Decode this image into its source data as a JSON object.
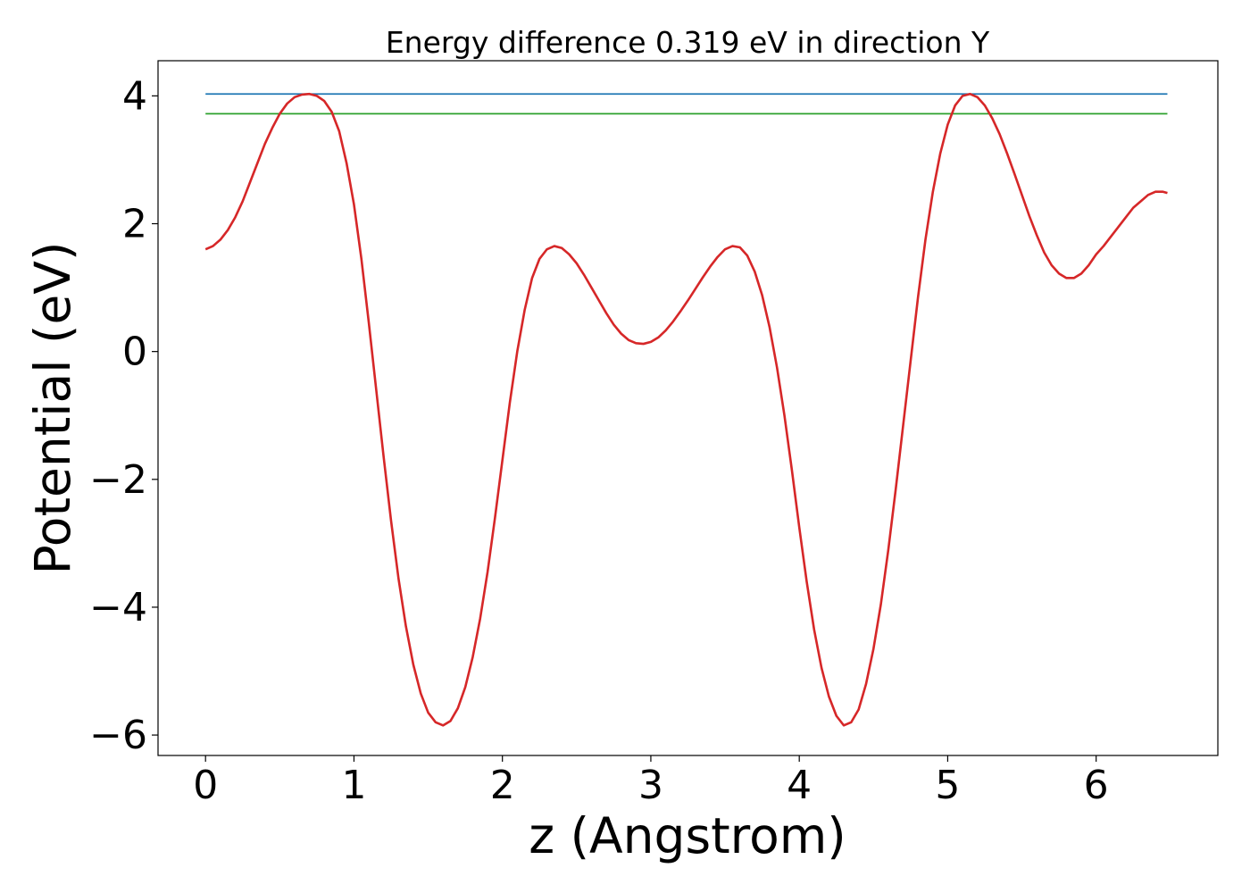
{
  "chart_data": {
    "type": "line",
    "title": "Energy difference 0.319 eV in direction Y",
    "xlabel": "z (Angstrom)",
    "ylabel": "Potential (eV)",
    "xlim": [
      -0.32,
      6.82
    ],
    "ylim": [
      -6.32,
      4.55
    ],
    "xticks": [
      0,
      1,
      2,
      3,
      4,
      5,
      6
    ],
    "xtick_labels": [
      "0",
      "1",
      "2",
      "3",
      "4",
      "5",
      "6"
    ],
    "yticks": [
      -6,
      -4,
      -2,
      0,
      2,
      4
    ],
    "ytick_labels": [
      "−6",
      "−4",
      "−2",
      "0",
      "2",
      "4"
    ],
    "grid": false,
    "series": [
      {
        "color": "#1f77b4",
        "x": [
          0,
          6.48
        ],
        "y": [
          4.03,
          4.03
        ]
      },
      {
        "color": "#2ca02c",
        "x": [
          0,
          6.48
        ],
        "y": [
          3.72,
          3.72
        ]
      },
      {
        "color": "#d62728",
        "x": [
          0.0,
          0.05,
          0.1,
          0.15,
          0.2,
          0.25,
          0.3,
          0.35,
          0.4,
          0.45,
          0.5,
          0.55,
          0.6,
          0.65,
          0.7,
          0.75,
          0.8,
          0.85,
          0.9,
          0.95,
          1.0,
          1.05,
          1.1,
          1.15,
          1.2,
          1.25,
          1.3,
          1.35,
          1.4,
          1.45,
          1.5,
          1.55,
          1.6,
          1.65,
          1.7,
          1.75,
          1.8,
          1.85,
          1.9,
          1.95,
          2.0,
          2.05,
          2.1,
          2.15,
          2.2,
          2.25,
          2.3,
          2.35,
          2.4,
          2.45,
          2.5,
          2.55,
          2.6,
          2.65,
          2.7,
          2.75,
          2.8,
          2.85,
          2.9,
          2.95,
          3.0,
          3.05,
          3.1,
          3.15,
          3.2,
          3.25,
          3.3,
          3.35,
          3.4,
          3.45,
          3.5,
          3.55,
          3.6,
          3.65,
          3.7,
          3.75,
          3.8,
          3.85,
          3.9,
          3.95,
          4.0,
          4.05,
          4.1,
          4.15,
          4.2,
          4.25,
          4.3,
          4.35,
          4.4,
          4.45,
          4.5,
          4.55,
          4.6,
          4.65,
          4.7,
          4.75,
          4.8,
          4.85,
          4.9,
          4.95,
          5.0,
          5.05,
          5.1,
          5.15,
          5.2,
          5.25,
          5.3,
          5.35,
          5.4,
          5.45,
          5.5,
          5.55,
          5.6,
          5.65,
          5.7,
          5.75,
          5.8,
          5.85,
          5.9,
          5.95,
          6.0,
          6.05,
          6.1,
          6.15,
          6.2,
          6.25,
          6.3,
          6.35,
          6.4,
          6.45,
          6.48
        ],
        "y": [
          1.6,
          1.65,
          1.75,
          1.9,
          2.1,
          2.35,
          2.65,
          2.95,
          3.25,
          3.5,
          3.72,
          3.88,
          3.98,
          4.02,
          4.03,
          4.0,
          3.92,
          3.75,
          3.45,
          2.95,
          2.3,
          1.45,
          0.45,
          -0.6,
          -1.65,
          -2.65,
          -3.55,
          -4.3,
          -4.9,
          -5.35,
          -5.65,
          -5.8,
          -5.85,
          -5.78,
          -5.58,
          -5.25,
          -4.78,
          -4.18,
          -3.45,
          -2.6,
          -1.7,
          -0.8,
          0.0,
          0.65,
          1.15,
          1.45,
          1.6,
          1.65,
          1.62,
          1.52,
          1.38,
          1.2,
          1.0,
          0.8,
          0.6,
          0.42,
          0.28,
          0.18,
          0.13,
          0.12,
          0.15,
          0.22,
          0.33,
          0.47,
          0.63,
          0.8,
          0.98,
          1.16,
          1.33,
          1.48,
          1.6,
          1.65,
          1.63,
          1.5,
          1.25,
          0.88,
          0.38,
          -0.25,
          -1.0,
          -1.85,
          -2.75,
          -3.6,
          -4.35,
          -4.95,
          -5.4,
          -5.7,
          -5.85,
          -5.8,
          -5.6,
          -5.2,
          -4.65,
          -3.95,
          -3.1,
          -2.15,
          -1.15,
          -0.15,
          0.85,
          1.75,
          2.5,
          3.1,
          3.55,
          3.85,
          4.0,
          4.03,
          3.98,
          3.85,
          3.65,
          3.4,
          3.1,
          2.78,
          2.45,
          2.12,
          1.82,
          1.55,
          1.35,
          1.22,
          1.15,
          1.15,
          1.22,
          1.35,
          1.52,
          1.65,
          1.8,
          1.95,
          2.1,
          2.25,
          2.35,
          2.45,
          2.5,
          2.5,
          2.48
        ]
      }
    ]
  }
}
